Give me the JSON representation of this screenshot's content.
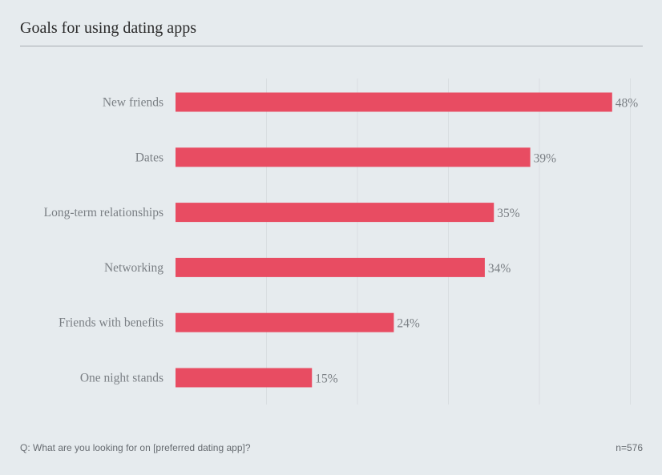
{
  "chart_data": {
    "type": "bar",
    "orientation": "horizontal",
    "title": "Goals for using dating apps",
    "categories": [
      "New friends",
      "Dates",
      "Long-term relationships",
      "Networking",
      "Friends with benefits",
      "One night stands"
    ],
    "values": [
      48,
      39,
      35,
      34,
      24,
      15
    ],
    "value_labels": [
      "48%",
      "39%",
      "35%",
      "34%",
      "24%",
      "15%"
    ],
    "xlim": [
      0,
      50
    ],
    "grid": true,
    "bar_color": "#e84c62"
  },
  "footer": {
    "question": "Q: What are you looking for on [preferred dating app]?",
    "sample": "n=576"
  },
  "colors": {
    "background": "#e6ebee",
    "bar": "#e84c62",
    "label_text": "#7a7f84",
    "gridline": "#d9dee1"
  }
}
